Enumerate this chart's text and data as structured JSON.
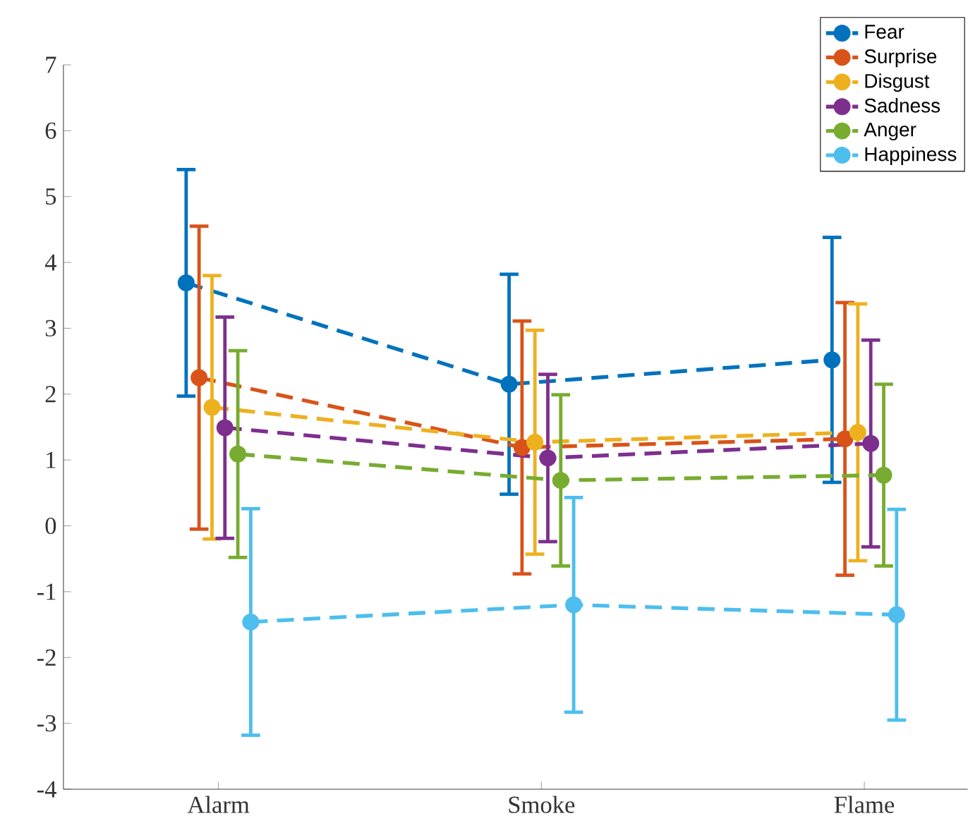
{
  "chart_data": {
    "type": "line",
    "categories": [
      "Alarm",
      "Smoke",
      "Flame"
    ],
    "series": [
      {
        "name": "Fear",
        "color": "#0072bd",
        "values": [
          3.69,
          2.15,
          2.52
        ],
        "errors": [
          1.72,
          1.67,
          1.86
        ]
      },
      {
        "name": "Surprise",
        "color": "#d95319",
        "values": [
          2.25,
          1.19,
          1.32
        ],
        "errors": [
          2.3,
          1.92,
          2.07
        ]
      },
      {
        "name": "Disgust",
        "color": "#edb120",
        "values": [
          1.8,
          1.27,
          1.42
        ],
        "errors": [
          2.0,
          1.7,
          1.95
        ]
      },
      {
        "name": "Sadness",
        "color": "#7e2f8e",
        "values": [
          1.49,
          1.03,
          1.25
        ],
        "errors": [
          1.68,
          1.27,
          1.57
        ]
      },
      {
        "name": "Anger",
        "color": "#77ac30",
        "values": [
          1.09,
          0.69,
          0.77
        ],
        "errors": [
          1.57,
          1.3,
          1.38
        ]
      },
      {
        "name": "Happiness",
        "color": "#4dbeee",
        "values": [
          -1.46,
          -1.2,
          -1.35
        ],
        "errors": [
          1.72,
          1.63,
          1.6
        ]
      }
    ],
    "ylim": [
      -4,
      7
    ],
    "yticks": [
      -4,
      -3,
      -2,
      -1,
      0,
      1,
      2,
      3,
      4,
      5,
      6,
      7
    ],
    "grid": false,
    "legend": "top right",
    "marker": "circle",
    "line_style": "dashed"
  }
}
